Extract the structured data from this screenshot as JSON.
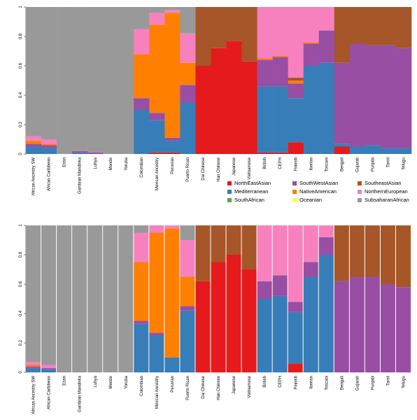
{
  "chart_data": [
    {
      "type": "stacked-bar",
      "categories": [
        "African Ancestry SW",
        "African Caribbean",
        "Esan",
        "Gambian Mandinka",
        "Luhya",
        "Mende",
        "Yoruba",
        "Colombian",
        "Mexican Ancestry",
        "Peruvian",
        "Puerto Rican",
        "Dai Chinese",
        "Han Chinese",
        "Japanese",
        "Vietnamese",
        "British",
        "CEPH",
        "Finnish",
        "Iberian",
        "Toscani",
        "Bengali",
        "Gujarati",
        "Punjabi",
        "Tamil",
        "Telugu"
      ],
      "ylim": [
        0,
        1
      ],
      "yticks": [
        0,
        0.2,
        0.4,
        0.6,
        0.8,
        1
      ],
      "legend": true,
      "series": [
        {
          "name": "NorthEastAsian",
          "color": "#e41a1c",
          "values": [
            0,
            0,
            0,
            0,
            0,
            0,
            0,
            0,
            0.01,
            0.01,
            0,
            0.6,
            0.72,
            0.77,
            0.63,
            0.01,
            0.01,
            0.08,
            0,
            0,
            0.05,
            0,
            0,
            0,
            0
          ]
        },
        {
          "name": "Mediterranean",
          "color": "#377eb8",
          "values": [
            0.05,
            0.04,
            0,
            0.01,
            0,
            0,
            0,
            0.3,
            0.22,
            0.08,
            0.35,
            0,
            0,
            0,
            0,
            0.45,
            0.45,
            0.3,
            0.6,
            0.62,
            0.02,
            0.05,
            0.06,
            0.04,
            0.04
          ]
        },
        {
          "name": "SouthAfrican",
          "color": "#4daf4a",
          "values": [
            0,
            0,
            0,
            0,
            0,
            0,
            0,
            0,
            0,
            0,
            0,
            0,
            0,
            0,
            0,
            0,
            0,
            0,
            0,
            0,
            0,
            0,
            0,
            0,
            0
          ]
        },
        {
          "name": "SouthWestAsian",
          "color": "#984ea3",
          "values": [
            0.02,
            0.02,
            0,
            0.01,
            0.01,
            0,
            0,
            0.08,
            0.05,
            0.02,
            0.12,
            0,
            0,
            0,
            0,
            0.18,
            0.2,
            0.1,
            0.15,
            0.22,
            0.55,
            0.7,
            0.68,
            0.7,
            0.68
          ]
        },
        {
          "name": "NativeAmerican",
          "color": "#ff7f00",
          "values": [
            0.02,
            0.01,
            0,
            0,
            0,
            0,
            0,
            0.3,
            0.6,
            0.85,
            0.15,
            0,
            0,
            0,
            0,
            0.01,
            0.01,
            0.02,
            0.01,
            0,
            0,
            0,
            0,
            0,
            0
          ]
        },
        {
          "name": "Oceanian",
          "color": "#ffff33",
          "values": [
            0,
            0,
            0,
            0,
            0,
            0,
            0,
            0,
            0,
            0,
            0,
            0,
            0,
            0,
            0,
            0,
            0,
            0,
            0,
            0,
            0,
            0,
            0,
            0,
            0
          ]
        },
        {
          "name": "SoutheastAsian",
          "color": "#a65628",
          "values": [
            0,
            0,
            0,
            0,
            0,
            0,
            0,
            0,
            0,
            0,
            0,
            0.4,
            0.28,
            0.23,
            0.37,
            0,
            0,
            0.02,
            0,
            0,
            0.38,
            0.25,
            0.26,
            0.26,
            0.28
          ]
        },
        {
          "name": "NorthernEuropean",
          "color": "#f781bf",
          "values": [
            0.03,
            0.03,
            0,
            0,
            0,
            0,
            0,
            0.17,
            0.08,
            0.02,
            0.2,
            0,
            0,
            0,
            0,
            0.35,
            0.33,
            0.48,
            0.24,
            0.16,
            0,
            0,
            0,
            0,
            0
          ]
        },
        {
          "name": "SubsaharanAfrican",
          "color": "#999999",
          "values": [
            0.88,
            0.9,
            1,
            0.98,
            0.99,
            1,
            1,
            0.15,
            0.04,
            0.02,
            0.18,
            0,
            0,
            0,
            0,
            0,
            0,
            0,
            0,
            0,
            0,
            0,
            0,
            0,
            0
          ]
        }
      ]
    },
    {
      "type": "stacked-bar",
      "categories": [
        "African Ancestry SW",
        "African Caribbean",
        "Esan",
        "Gambian Mandinka",
        "Luhya",
        "Mende",
        "Yoruba",
        "Colombian",
        "Mexican Ancestry",
        "Peruvian",
        "Puerto Rican",
        "Dai Chinese",
        "Han Chinese",
        "Japanese",
        "Vietnamese",
        "British",
        "CEPH",
        "Finnish",
        "Iberian",
        "Toscani",
        "Bengali",
        "Gujarati",
        "Punjabi",
        "Tamil",
        "Telugu"
      ],
      "ylim": [
        0,
        1
      ],
      "yticks": [
        0,
        0.2,
        0.4,
        0.6,
        0.8,
        1
      ],
      "legend": false,
      "series": [
        {
          "color": "#e41a1c",
          "values": [
            0,
            0,
            0,
            0,
            0,
            0,
            0,
            0,
            0,
            0,
            0,
            0.62,
            0.75,
            0.8,
            0.7,
            0,
            0,
            0.06,
            0,
            0,
            0,
            0,
            0,
            0,
            0
          ]
        },
        {
          "color": "#377eb8",
          "values": [
            0.03,
            0.02,
            0,
            0,
            0,
            0,
            0,
            0.33,
            0.25,
            0.1,
            0.42,
            0,
            0,
            0,
            0,
            0.5,
            0.52,
            0.35,
            0.65,
            0.8,
            0,
            0,
            0,
            0,
            0
          ]
        },
        {
          "color": "#4daf4a",
          "values": [
            0,
            0,
            0,
            0,
            0,
            0,
            0,
            0,
            0,
            0,
            0,
            0,
            0,
            0,
            0,
            0,
            0,
            0,
            0,
            0,
            0,
            0,
            0,
            0,
            0
          ]
        },
        {
          "color": "#984ea3",
          "values": [
            0.01,
            0.01,
            0,
            0,
            0,
            0,
            0,
            0.02,
            0.02,
            0,
            0.03,
            0,
            0,
            0,
            0,
            0.12,
            0.14,
            0.07,
            0.1,
            0.12,
            0.62,
            0.65,
            0.65,
            0.6,
            0.58
          ]
        },
        {
          "color": "#ff7f00",
          "values": [
            0.01,
            0,
            0,
            0,
            0,
            0,
            0,
            0.4,
            0.68,
            0.88,
            0.2,
            0,
            0,
            0,
            0,
            0,
            0,
            0,
            0,
            0,
            0,
            0,
            0,
            0,
            0
          ]
        },
        {
          "color": "#ffff33",
          "values": [
            0,
            0,
            0,
            0,
            0,
            0,
            0,
            0,
            0,
            0,
            0,
            0,
            0,
            0,
            0,
            0,
            0,
            0,
            0,
            0,
            0,
            0,
            0,
            0,
            0
          ]
        },
        {
          "color": "#a65628",
          "values": [
            0,
            0,
            0,
            0,
            0,
            0,
            0,
            0,
            0,
            0,
            0,
            0.38,
            0.25,
            0.2,
            0.3,
            0,
            0,
            0,
            0,
            0,
            0.38,
            0.35,
            0.35,
            0.4,
            0.42
          ]
        },
        {
          "color": "#f781bf",
          "values": [
            0.02,
            0.02,
            0,
            0,
            0,
            0,
            0,
            0.2,
            0.05,
            0.02,
            0.25,
            0,
            0,
            0,
            0,
            0.38,
            0.34,
            0.52,
            0.25,
            0.08,
            0,
            0,
            0,
            0,
            0
          ]
        },
        {
          "color": "#999999",
          "values": [
            0.93,
            0.95,
            1,
            1,
            1,
            1,
            1,
            0.05,
            0,
            0,
            0.1,
            0,
            0,
            0,
            0,
            0,
            0,
            0,
            0,
            0,
            0,
            0,
            0,
            0,
            0
          ]
        }
      ]
    }
  ]
}
